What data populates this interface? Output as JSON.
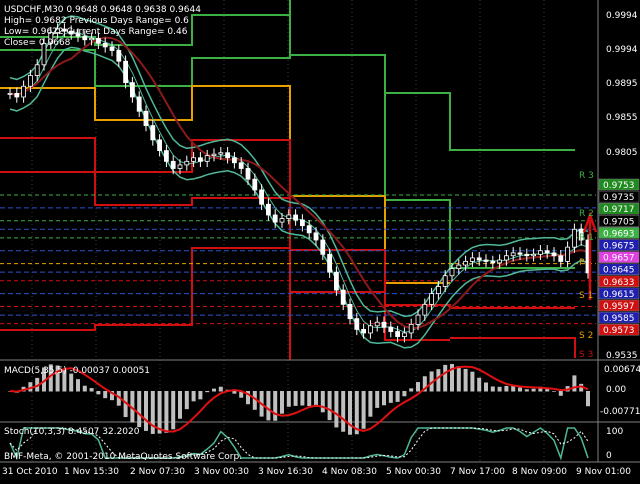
{
  "info": {
    "line1": "USDCHF,M30  0.9648 0.9648 0.9638 0.9644",
    "line2": "High= 0.9682    Previous Days Range= 0.6",
    "line3": "Low= 0.9622    Current Days Range= 0.46",
    "line4": "Close= 0.9668"
  },
  "price_axis": {
    "ticks": [
      "0.9994",
      "0.9895",
      "0.9855",
      "0.9805",
      "0.9535"
    ],
    "tags": [
      {
        "label": "0.9753",
        "bg": "#1f8a1f",
        "fg": "#ffffff",
        "value": 0.9753
      },
      {
        "label": "0.9735",
        "bg": "#000000",
        "fg": "#ffffff",
        "value": 0.9735
      },
      {
        "label": "0.9717",
        "bg": "#1f8a1f",
        "fg": "#ffffff",
        "value": 0.9717
      },
      {
        "label": "0.9705",
        "bg": "#000000",
        "fg": "#ffffff",
        "value": 0.9705
      },
      {
        "label": "0.9693",
        "bg": "#3cb043",
        "fg": "#ffffff",
        "value": 0.9693
      },
      {
        "label": "0.9675",
        "bg": "#1f1fb0",
        "fg": "#ffffff",
        "value": 0.9675
      },
      {
        "label": "0.9657",
        "bg": "#e040e0",
        "fg": "#ffffff",
        "value": 0.9657
      },
      {
        "label": "0.9645",
        "bg": "#1f1fb0",
        "fg": "#ffffff",
        "value": 0.9645
      },
      {
        "label": "0.9633",
        "bg": "#d01010",
        "fg": "#ffffff",
        "value": 0.9633
      },
      {
        "label": "0.9615",
        "bg": "#1f1fb0",
        "fg": "#ffffff",
        "value": 0.9615
      },
      {
        "label": "0.9597",
        "bg": "#d01010",
        "fg": "#ffffff",
        "value": 0.9597
      },
      {
        "label": "0.9585",
        "bg": "#1f1fb0",
        "fg": "#ffffff",
        "value": 0.9585
      },
      {
        "label": "0.9573",
        "bg": "#d01010",
        "fg": "#ffffff",
        "value": 0.9573
      }
    ],
    "pivot_labels": [
      "R 3",
      "R 2",
      "R 1",
      "P",
      "S 1",
      "S 2",
      "S 3"
    ]
  },
  "macd": {
    "label": "MACD(5,35,5) -0.00037 0.00051",
    "ticks": [
      "0.00674",
      "0.00",
      "-0.00771"
    ]
  },
  "stoch": {
    "label": "Stoch(10,3,3) 8.4507 32.2020",
    "ticks": [
      "100",
      "0"
    ],
    "watermark": "BMF-Meta, © 2001-2010 MetaQuotes Software Corp."
  },
  "time_axis": [
    "31 Oct 2010",
    "1 Nov 15:30",
    "2 Nov 07:30",
    "3 Nov 00:30",
    "3 Nov 16:30",
    "4 Nov 08:30",
    "5 Nov 00:30",
    "7 Nov 17:00",
    "8 Nov 09:00",
    "9 Nov 01:00"
  ],
  "colors": {
    "background": "#000000",
    "grid": "#3a3a3a",
    "candle": "#ffffff",
    "resistance": "#3cb043",
    "support": "#d01010",
    "pivot": "#e8a000",
    "ma": "#8b1a1a",
    "bands": "#4fb89a",
    "macd_hist": "#c0c0c0",
    "macd_signal": "#e01010",
    "stoch_main": "#4fb89a",
    "stoch_signal": "#ffffff"
  },
  "chart_data": {
    "type": "candlestick",
    "symbol": "USDCHF",
    "timeframe": "M30",
    "ylim": [
      0.9525,
      1.002
    ],
    "close_series": [
      0.9895,
      0.989,
      0.9905,
      0.992,
      0.9935,
      0.9965,
      0.998,
      0.9985,
      0.9982,
      0.9978,
      0.9975,
      0.997,
      0.9972,
      0.9965,
      0.996,
      0.9955,
      0.994,
      0.991,
      0.989,
      0.987,
      0.985,
      0.983,
      0.9815,
      0.98,
      0.979,
      0.9795,
      0.98,
      0.9805,
      0.98,
      0.9808,
      0.981,
      0.9812,
      0.9805,
      0.9798,
      0.979,
      0.9775,
      0.976,
      0.974,
      0.9725,
      0.9715,
      0.972,
      0.9725,
      0.9718,
      0.971,
      0.97,
      0.969,
      0.967,
      0.9645,
      0.962,
      0.96,
      0.958,
      0.9565,
      0.956,
      0.957,
      0.9575,
      0.9568,
      0.9562,
      0.9555,
      0.956,
      0.9572,
      0.9585,
      0.96,
      0.9615,
      0.9625,
      0.964,
      0.965,
      0.9655,
      0.966,
      0.9665,
      0.9662,
      0.966,
      0.9658,
      0.9662,
      0.9668,
      0.9672,
      0.967,
      0.9668,
      0.967,
      0.9675,
      0.9672,
      0.9668,
      0.966,
      0.968,
      0.9705,
      0.969,
      0.9644
    ],
    "pivot_levels": {
      "R3": 0.9753,
      "R2": 0.9717,
      "R1": 0.9693,
      "P": 0.9657,
      "S1": 0.9633,
      "S2": 0.9597,
      "S3": 0.9573
    },
    "macd_ylim": [
      -0.00771,
      0.00674
    ],
    "stoch_ylim": [
      0,
      100
    ]
  }
}
